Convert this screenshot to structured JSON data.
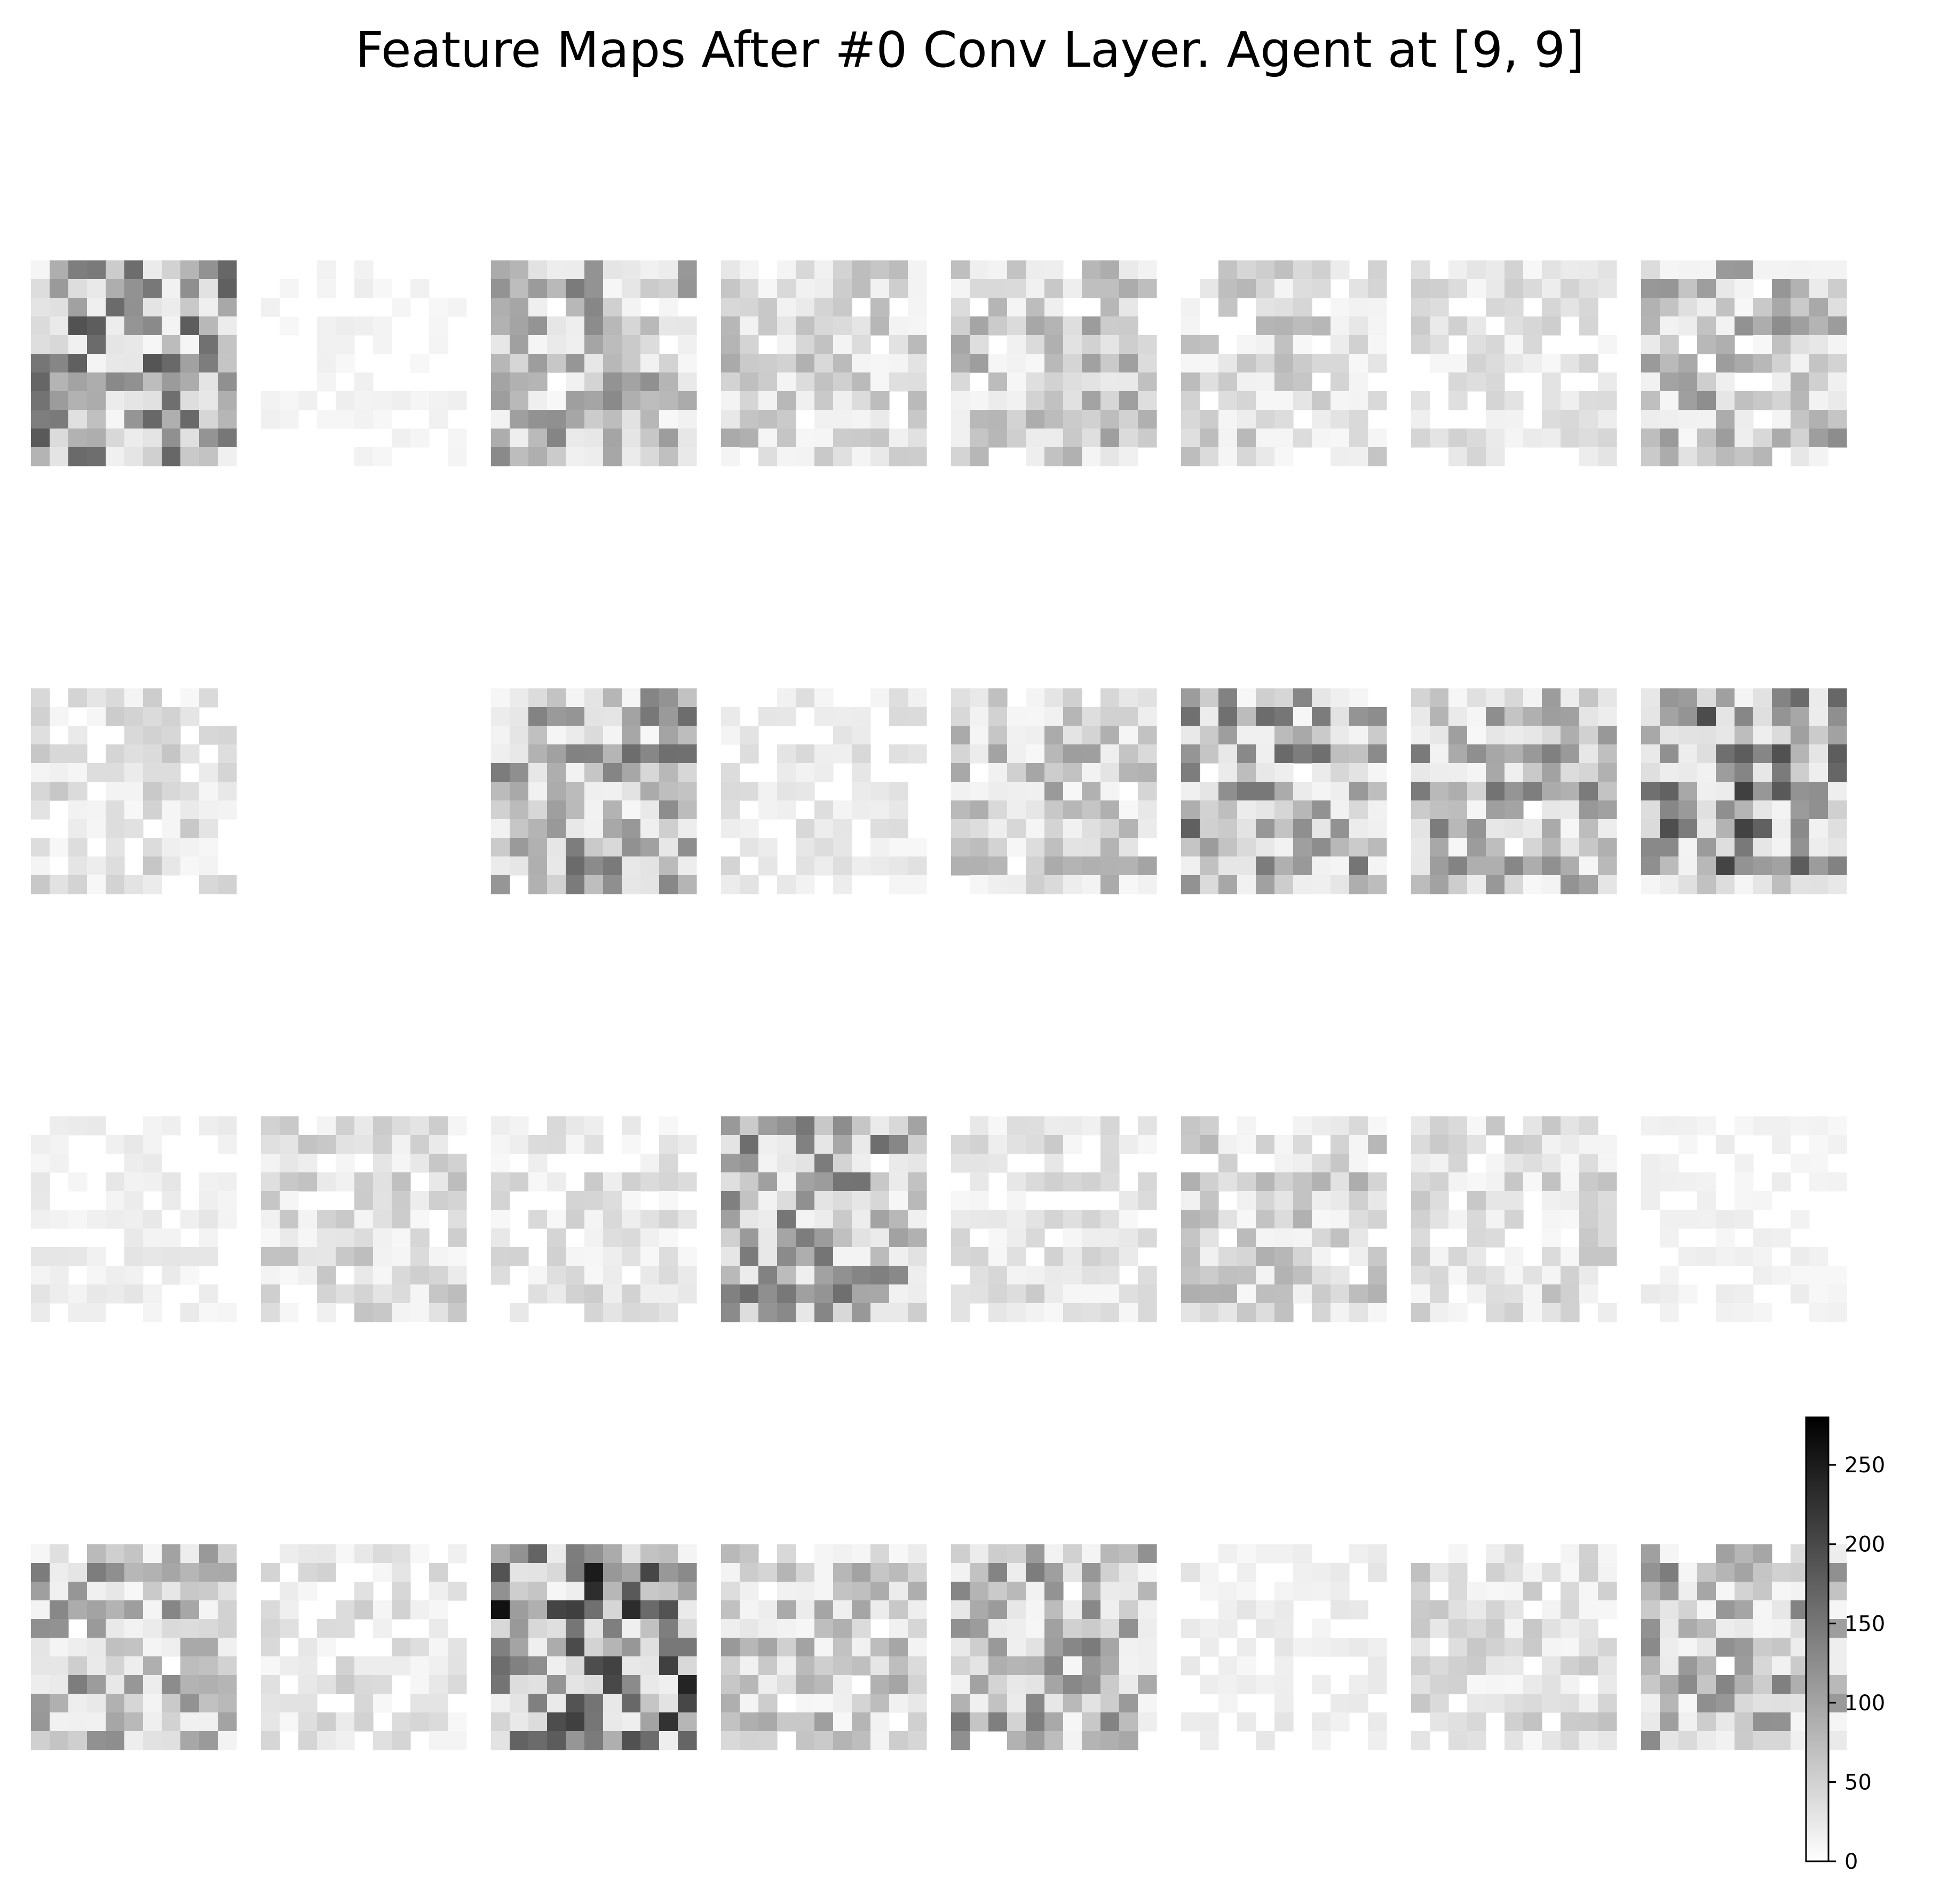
{
  "title": "Feature Maps After #0 Conv Layer. Agent at [9, 9]",
  "chart_data": {
    "type": "heatmap",
    "title": "Feature Maps After #0 Conv Layer. Agent at [9, 9]",
    "layout": {
      "rows": 4,
      "cols": 8
    },
    "map_size": [
      11,
      11
    ],
    "colormap": "gray_r",
    "colorbar": {
      "vmin": 0,
      "vmax": 280,
      "ticks": [
        0,
        50,
        100,
        150,
        200,
        250
      ],
      "tick_labels": [
        "0",
        "50",
        "100",
        "150",
        "200",
        "250"
      ]
    },
    "channels": [
      {
        "index": 0,
        "intensity": 0.55,
        "pattern": 1
      },
      {
        "index": 1,
        "intensity": 0.05,
        "pattern": 0
      },
      {
        "index": 2,
        "intensity": 0.4,
        "pattern": 2
      },
      {
        "index": 3,
        "intensity": 0.25,
        "pattern": 3
      },
      {
        "index": 4,
        "intensity": 0.3,
        "pattern": 4
      },
      {
        "index": 5,
        "intensity": 0.22,
        "pattern": 5
      },
      {
        "index": 6,
        "intensity": 0.15,
        "pattern": 6
      },
      {
        "index": 7,
        "intensity": 0.35,
        "pattern": 7
      },
      {
        "index": 8,
        "intensity": 0.18,
        "pattern": 8
      },
      {
        "index": 9,
        "intensity": 0.0,
        "pattern": 0
      },
      {
        "index": 10,
        "intensity": 0.45,
        "pattern": 9
      },
      {
        "index": 11,
        "intensity": 0.12,
        "pattern": 10
      },
      {
        "index": 12,
        "intensity": 0.3,
        "pattern": 11
      },
      {
        "index": 13,
        "intensity": 0.45,
        "pattern": 12
      },
      {
        "index": 14,
        "intensity": 0.4,
        "pattern": 13
      },
      {
        "index": 15,
        "intensity": 0.55,
        "pattern": 14
      },
      {
        "index": 16,
        "intensity": 0.08,
        "pattern": 15
      },
      {
        "index": 17,
        "intensity": 0.2,
        "pattern": 16
      },
      {
        "index": 18,
        "intensity": 0.15,
        "pattern": 17
      },
      {
        "index": 19,
        "intensity": 0.45,
        "pattern": 18
      },
      {
        "index": 20,
        "intensity": 0.15,
        "pattern": 19
      },
      {
        "index": 21,
        "intensity": 0.25,
        "pattern": 20
      },
      {
        "index": 22,
        "intensity": 0.2,
        "pattern": 21
      },
      {
        "index": 23,
        "intensity": 0.06,
        "pattern": 22
      },
      {
        "index": 24,
        "intensity": 0.4,
        "pattern": 23
      },
      {
        "index": 25,
        "intensity": 0.15,
        "pattern": 24
      },
      {
        "index": 26,
        "intensity": 0.7,
        "pattern": 25
      },
      {
        "index": 27,
        "intensity": 0.3,
        "pattern": 26
      },
      {
        "index": 28,
        "intensity": 0.4,
        "pattern": 27
      },
      {
        "index": 29,
        "intensity": 0.08,
        "pattern": 28
      },
      {
        "index": 30,
        "intensity": 0.2,
        "pattern": 29
      },
      {
        "index": 31,
        "intensity": 0.4,
        "pattern": 30
      }
    ]
  }
}
